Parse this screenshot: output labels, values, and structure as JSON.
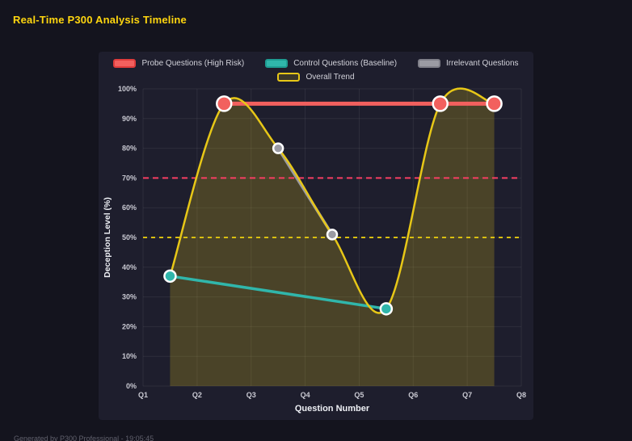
{
  "header": {
    "title": "Real-Time P300 Analysis Timeline"
  },
  "footer": {
    "text": "Generated by P300 Professional - 19:05:45"
  },
  "colors": {
    "page_background": "#14141e",
    "panel_background": "#1e1e2d",
    "title": "#ffd60f",
    "grid": "rgba(255,255,255,0.07)",
    "tick_text": "#c9c9d2",
    "axis_title_text": "#eef0f5",
    "marker_border": "#ffffff"
  },
  "chart_data": {
    "type": "line",
    "title": "Real-Time P300 Analysis Timeline",
    "xlabel": "Question Number",
    "ylabel": "Deception Level (%)",
    "xlim": [
      1,
      8
    ],
    "ylim": [
      0,
      100
    ],
    "grid": true,
    "legend_position": "top",
    "x_ticks": [
      {
        "v": 1,
        "label": "Q1"
      },
      {
        "v": 2,
        "label": "Q2"
      },
      {
        "v": 3,
        "label": "Q3"
      },
      {
        "v": 4,
        "label": "Q4"
      },
      {
        "v": 5,
        "label": "Q5"
      },
      {
        "v": 6,
        "label": "Q6"
      },
      {
        "v": 7,
        "label": "Q7"
      },
      {
        "v": 8,
        "label": "Q8"
      }
    ],
    "y_ticks": [
      {
        "v": 0,
        "label": "0%"
      },
      {
        "v": 10,
        "label": "10%"
      },
      {
        "v": 20,
        "label": "20%"
      },
      {
        "v": 30,
        "label": "30%"
      },
      {
        "v": 40,
        "label": "40%"
      },
      {
        "v": 50,
        "label": "50%"
      },
      {
        "v": 60,
        "label": "60%"
      },
      {
        "v": 70,
        "label": "70%"
      },
      {
        "v": 80,
        "label": "80%"
      },
      {
        "v": 90,
        "label": "90%"
      },
      {
        "v": 100,
        "label": "100%"
      }
    ],
    "legend": [
      {
        "label": "Probe Questions (High Risk)",
        "fill": "#f2605e",
        "border": "#df3c3c"
      },
      {
        "label": "Control Questions (Baseline)",
        "fill": "#30b6ab",
        "border": "#1e9c92"
      },
      {
        "label": "Irrelevant Questions",
        "fill": "#9b9ba3",
        "border": "#7f7f89"
      },
      {
        "label": "Overall Trend",
        "fill": "rgba(231,199,23,0.15)",
        "border": "#e7c717"
      }
    ],
    "series": [
      {
        "name": "Probe Questions (High Risk)",
        "color": "#f2605e",
        "line_width": 5,
        "marker_radius": 9,
        "smooth": false,
        "points": [
          {
            "x": 2.5,
            "y": 95
          },
          {
            "x": 6.5,
            "y": 95
          },
          {
            "x": 7.5,
            "y": 95
          }
        ]
      },
      {
        "name": "Control Questions (Baseline)",
        "color": "#30b6ab",
        "line_width": 3.5,
        "marker_radius": 7,
        "smooth": false,
        "points": [
          {
            "x": 1.5,
            "y": 37
          },
          {
            "x": 5.5,
            "y": 26
          }
        ]
      },
      {
        "name": "Irrelevant Questions",
        "color": "#9b9ba3",
        "line_width": 3.5,
        "marker_radius": 6,
        "smooth": false,
        "points": [
          {
            "x": 3.5,
            "y": 80
          },
          {
            "x": 4.5,
            "y": 51
          }
        ]
      },
      {
        "name": "Overall Trend",
        "color": "#e7c717",
        "line_width": 2.5,
        "marker_radius": 0,
        "smooth": true,
        "area_fill": "rgba(231,199,23,0.22)",
        "points": [
          {
            "x": 1.5,
            "y": 37
          },
          {
            "x": 2.5,
            "y": 95
          },
          {
            "x": 3.5,
            "y": 80
          },
          {
            "x": 4.5,
            "y": 51
          },
          {
            "x": 5.5,
            "y": 26
          },
          {
            "x": 6.5,
            "y": 95
          },
          {
            "x": 7.5,
            "y": 95
          }
        ]
      }
    ],
    "thresholds": [
      {
        "y": 70,
        "color": "#f63e63",
        "dash": "7 5"
      },
      {
        "y": 50,
        "color": "#d9bf11",
        "dash": "5 5"
      }
    ]
  }
}
